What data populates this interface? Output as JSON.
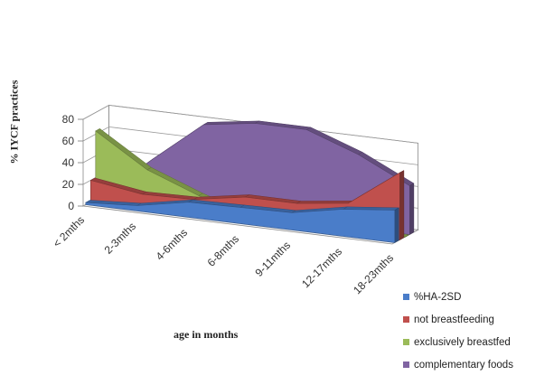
{
  "chart_data": {
    "type": "area",
    "style": "3d",
    "ylabel": "% IYCF practices",
    "xlabel": "age in months",
    "ylim": [
      0,
      80
    ],
    "yticks": [
      "0",
      "20",
      "40",
      "60",
      "80"
    ],
    "categories": [
      "< 2mths",
      "2-3mths",
      "4-6mths",
      "6-8mths",
      "9-11mths",
      "12-17mths",
      "18-23mths"
    ],
    "legend_position": "bottom-right",
    "series": [
      {
        "name": "%HA-2SD",
        "color": "#4a7dc9",
        "values": [
          2,
          5,
          14,
          15,
          16,
          25,
          30
        ]
      },
      {
        "name": "not breastfeeding",
        "color": "#c0504d",
        "values": [
          20,
          13,
          14,
          22,
          22,
          28,
          62
        ]
      },
      {
        "name": "exclusively breastfed",
        "color": "#9bbb59",
        "values": [
          63,
          33,
          15,
          0,
          0,
          0,
          0
        ]
      },
      {
        "name": "complementary foods",
        "color": "#8064a2",
        "values": [
          0,
          40,
          78,
          85,
          85,
          68,
          45
        ]
      }
    ]
  }
}
